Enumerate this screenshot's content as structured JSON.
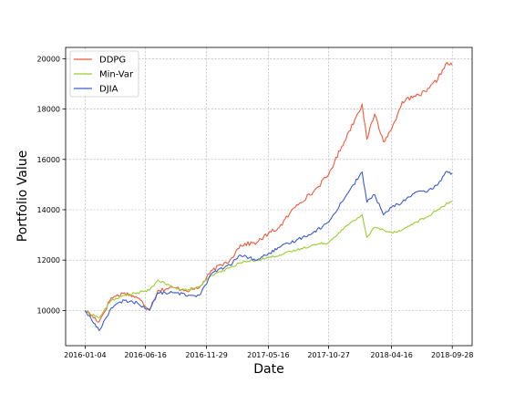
{
  "chart_data": {
    "type": "line",
    "xlabel": "Date",
    "ylabel": "Portfolio Value",
    "x_ticks": [
      "2016-01-04",
      "2016-06-16",
      "2016-11-29",
      "2017-05-16",
      "2017-10-27",
      "2018-04-16",
      "2018-09-28"
    ],
    "y_ticks": [
      10000,
      12000,
      14000,
      16000,
      18000,
      20000
    ],
    "xlim": [
      "2015-11-12",
      "2018-11-21"
    ],
    "ylim": [
      8600,
      20450
    ],
    "grid": true,
    "legend_position": "top-left",
    "series": [
      {
        "name": "DDPG",
        "color": "#f05a3c",
        "points": [
          [
            "2016-01-04",
            10000
          ],
          [
            "2016-02-11",
            9550
          ],
          [
            "2016-03-15",
            10500
          ],
          [
            "2016-04-20",
            10700
          ],
          [
            "2016-05-25",
            10500
          ],
          [
            "2016-06-27",
            10050
          ],
          [
            "2016-07-20",
            10800
          ],
          [
            "2016-09-01",
            10900
          ],
          [
            "2016-10-15",
            10800
          ],
          [
            "2016-11-09",
            10900
          ],
          [
            "2016-12-15",
            11600
          ],
          [
            "2017-02-01",
            12000
          ],
          [
            "2017-03-01",
            12600
          ],
          [
            "2017-04-15",
            12700
          ],
          [
            "2017-05-16",
            13050
          ],
          [
            "2017-06-15",
            13300
          ],
          [
            "2017-08-01",
            14200
          ],
          [
            "2017-09-15",
            14700
          ],
          [
            "2017-10-27",
            15400
          ],
          [
            "2017-12-01",
            16500
          ],
          [
            "2018-01-10",
            17700
          ],
          [
            "2018-01-26",
            18200
          ],
          [
            "2018-02-08",
            16800
          ],
          [
            "2018-03-01",
            17800
          ],
          [
            "2018-03-25",
            16700
          ],
          [
            "2018-04-16",
            17200
          ],
          [
            "2018-05-15",
            18300
          ],
          [
            "2018-06-20",
            18500
          ],
          [
            "2018-07-20",
            18700
          ],
          [
            "2018-08-20",
            19200
          ],
          [
            "2018-09-10",
            19800
          ],
          [
            "2018-09-28",
            19750
          ]
        ]
      },
      {
        "name": "Min-Var",
        "color": "#9acd32",
        "points": [
          [
            "2016-01-04",
            10000
          ],
          [
            "2016-02-11",
            9700
          ],
          [
            "2016-03-15",
            10400
          ],
          [
            "2016-04-20",
            10600
          ],
          [
            "2016-05-25",
            10700
          ],
          [
            "2016-06-27",
            10800
          ],
          [
            "2016-07-20",
            11200
          ],
          [
            "2016-09-01",
            10900
          ],
          [
            "2016-10-15",
            10800
          ],
          [
            "2016-11-09",
            10950
          ],
          [
            "2016-12-15",
            11400
          ],
          [
            "2017-02-01",
            11700
          ],
          [
            "2017-03-01",
            11900
          ],
          [
            "2017-04-15",
            12000
          ],
          [
            "2017-05-16",
            12100
          ],
          [
            "2017-06-15",
            12200
          ],
          [
            "2017-08-01",
            12400
          ],
          [
            "2017-09-15",
            12600
          ],
          [
            "2017-10-27",
            12700
          ],
          [
            "2017-12-01",
            13200
          ],
          [
            "2018-01-26",
            13800
          ],
          [
            "2018-02-08",
            12900
          ],
          [
            "2018-03-01",
            13300
          ],
          [
            "2018-04-16",
            13100
          ],
          [
            "2018-05-15",
            13200
          ],
          [
            "2018-06-20",
            13500
          ],
          [
            "2018-07-20",
            13700
          ],
          [
            "2018-08-20",
            14000
          ],
          [
            "2018-09-10",
            14200
          ],
          [
            "2018-09-28",
            14350
          ]
        ]
      },
      {
        "name": "DJIA",
        "color": "#3d5bd0",
        "points": [
          [
            "2016-01-04",
            10000
          ],
          [
            "2016-02-11",
            9200
          ],
          [
            "2016-03-15",
            10100
          ],
          [
            "2016-04-20",
            10400
          ],
          [
            "2016-05-25",
            10300
          ],
          [
            "2016-06-27",
            10000
          ],
          [
            "2016-07-20",
            10700
          ],
          [
            "2016-09-01",
            10700
          ],
          [
            "2016-10-15",
            10600
          ],
          [
            "2016-11-09",
            10600
          ],
          [
            "2016-12-15",
            11500
          ],
          [
            "2017-02-01",
            11800
          ],
          [
            "2017-03-01",
            12200
          ],
          [
            "2017-04-15",
            12000
          ],
          [
            "2017-05-16",
            12250
          ],
          [
            "2017-06-15",
            12500
          ],
          [
            "2017-08-01",
            12800
          ],
          [
            "2017-09-15",
            13100
          ],
          [
            "2017-10-27",
            13500
          ],
          [
            "2017-12-01",
            14300
          ],
          [
            "2018-01-26",
            15500
          ],
          [
            "2018-02-08",
            14300
          ],
          [
            "2018-03-01",
            14600
          ],
          [
            "2018-03-25",
            13800
          ],
          [
            "2018-04-16",
            14100
          ],
          [
            "2018-05-15",
            14300
          ],
          [
            "2018-06-20",
            14700
          ],
          [
            "2018-07-20",
            14700
          ],
          [
            "2018-08-20",
            15000
          ],
          [
            "2018-09-10",
            15500
          ],
          [
            "2018-09-28",
            15450
          ]
        ]
      }
    ]
  }
}
